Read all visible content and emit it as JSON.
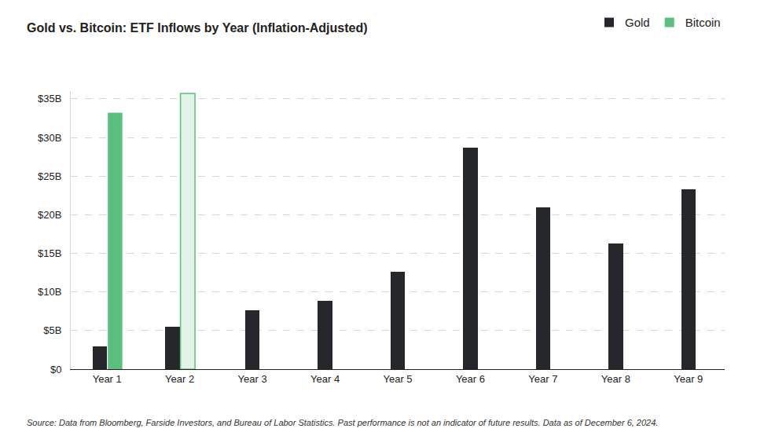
{
  "chart_data": {
    "type": "bar",
    "title": "Gold vs. Bitcoin: ETF Inflows by Year (Inflation-Adjusted)",
    "categories": [
      "Year 1",
      "Year 2",
      "Year 3",
      "Year 4",
      "Year 5",
      "Year 6",
      "Year 7",
      "Year 8",
      "Year 9"
    ],
    "series": [
      {
        "name": "Gold",
        "color": "#25272b",
        "values": [
          3.0,
          5.5,
          7.6,
          8.8,
          12.6,
          28.7,
          21.0,
          16.3,
          23.3
        ]
      },
      {
        "name": "Bitcoin",
        "color": "#5bbf7f",
        "colors": [
          "#5bbf7f",
          "#e2f3e8",
          "#5bbf7f",
          "#5bbf7f",
          "#5bbf7f",
          "#5bbf7f",
          "#5bbf7f",
          "#5bbf7f",
          "#5bbf7f"
        ],
        "values": [
          33.2,
          35.7,
          null,
          null,
          null,
          null,
          null,
          null,
          null
        ]
      }
    ],
    "ylim": [
      0,
      36
    ],
    "yticks": [
      {
        "value": 0,
        "label": "$0"
      },
      {
        "value": 5,
        "label": "$5B"
      },
      {
        "value": 10,
        "label": "$10B"
      },
      {
        "value": 15,
        "label": "$15B"
      },
      {
        "value": 20,
        "label": "$20B"
      },
      {
        "value": 25,
        "label": "$25B"
      },
      {
        "value": 30,
        "label": "$30B"
      },
      {
        "value": 35,
        "label": "$35B"
      }
    ],
    "grid": true,
    "legend": "top-right",
    "annotations": [
      "Source: Data from Bloomberg, Farside Investors, and Bureau of Labor Statistics. Past performance is not an indicator of future results. Data as of December 6, 2024."
    ]
  }
}
